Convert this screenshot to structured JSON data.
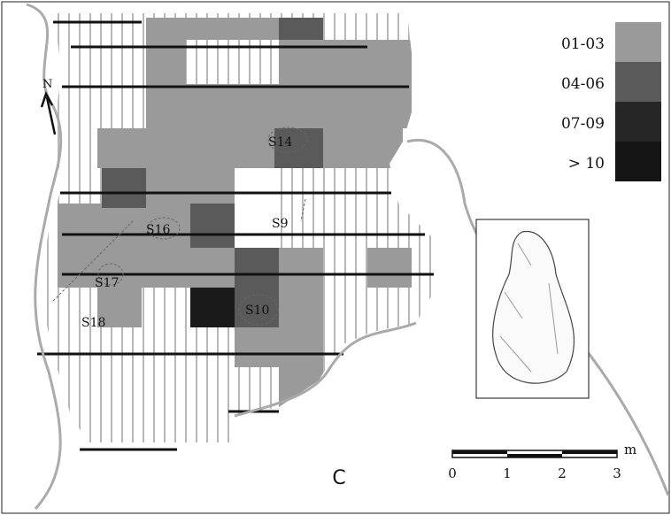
{
  "north": "N",
  "legend": [
    {
      "label": "01-03",
      "color": "#9a9a9a"
    },
    {
      "label": "04-06",
      "color": "#5a5a5a"
    },
    {
      "label": "07-09",
      "color": "#262626"
    },
    {
      "label": "> 10",
      "color": "#141414"
    }
  ],
  "sites": [
    "S14",
    "S9",
    "S16",
    "S17",
    "S18",
    "S10"
  ],
  "scale": {
    "unit": "m",
    "ticks": [
      "0",
      "1",
      "2",
      "3"
    ]
  },
  "panel_label": "C"
}
